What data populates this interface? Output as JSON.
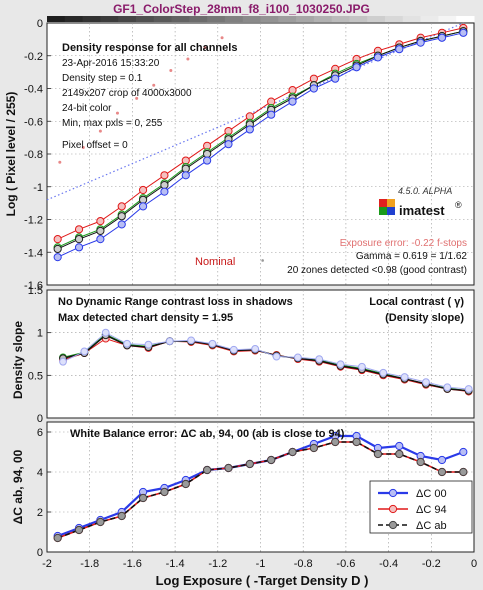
{
  "window_title": "GF1_ColorStep_28mm_f8_i100_1030250.JPG",
  "colors": {
    "red": "#e01818",
    "green": "#1a9a1a",
    "blue": "#2a3ae8",
    "black": "#111111",
    "ab": "#666666",
    "light_blue": "#a0a8f0",
    "nominal_red": "#c81818",
    "exposure_error": "#e07070",
    "nominal_dot": "#e88888"
  },
  "top_panel": {
    "title": "Density response for all channels",
    "info_lines": [
      "23-Apr-2016 15:33:20",
      "Density step = 0.1",
      "2149x207 crop of 4000x3000",
      "24-bit color",
      "Min, max pxls = 0, 255"
    ],
    "pixel_offset": "Pixel offset = 0",
    "version": "4.5.0. ALPHA",
    "logo": "imatest",
    "exposure_error": "Exposure error: -0.22 f-stops",
    "nominal_label": "Nominal",
    "gamma": "Gamma = 0.619 = 1/1.62",
    "zones": "20 zones detected <0.98 (good contrast)"
  },
  "middle_panel": {
    "left_line1": "No Dynamic Range contrast loss in shadows",
    "left_line2": "Max detected chart density = 1.95",
    "right_line1": "Local contrast ( γ)",
    "right_line2": "(Density slope)"
  },
  "bottom_panel": {
    "title": "White Balance error:  ΔC ab, 94, 00 (ab is close to 94)",
    "legend": [
      "ΔC 00",
      "ΔC 94",
      "ΔC ab"
    ]
  },
  "chart_data": [
    {
      "type": "line",
      "ylabel": "Log ( Pixel level / 255)",
      "xlim": [
        -2,
        0
      ],
      "ylim": [
        -1.6,
        0
      ],
      "yticks": [
        0,
        -0.2,
        -0.4,
        -0.6,
        -0.8,
        -1,
        -1.2,
        -1.4,
        -1.6
      ],
      "grid": true,
      "x": [
        -1.95,
        -1.85,
        -1.75,
        -1.65,
        -1.55,
        -1.45,
        -1.35,
        -1.25,
        -1.15,
        -1.05,
        -0.95,
        -0.85,
        -0.75,
        -0.65,
        -0.55,
        -0.45,
        -0.35,
        -0.25,
        -0.15,
        -0.05
      ],
      "series": [
        {
          "name": "red",
          "values": [
            -1.32,
            -1.26,
            -1.21,
            -1.12,
            -1.02,
            -0.93,
            -0.84,
            -0.75,
            -0.66,
            -0.57,
            -0.48,
            -0.41,
            -0.34,
            -0.28,
            -0.22,
            -0.17,
            -0.13,
            -0.09,
            -0.06,
            -0.03
          ]
        },
        {
          "name": "green",
          "values": [
            -1.37,
            -1.31,
            -1.26,
            -1.17,
            -1.07,
            -0.98,
            -0.88,
            -0.79,
            -0.7,
            -0.61,
            -0.52,
            -0.45,
            -0.38,
            -0.31,
            -0.25,
            -0.2,
            -0.15,
            -0.11,
            -0.08,
            -0.05
          ]
        },
        {
          "name": "black",
          "values": [
            -1.38,
            -1.32,
            -1.27,
            -1.18,
            -1.08,
            -0.99,
            -0.89,
            -0.8,
            -0.71,
            -0.62,
            -0.53,
            -0.46,
            -0.38,
            -0.32,
            -0.26,
            -0.2,
            -0.15,
            -0.11,
            -0.08,
            -0.05
          ]
        },
        {
          "name": "blue",
          "values": [
            -1.43,
            -1.37,
            -1.32,
            -1.23,
            -1.12,
            -1.03,
            -0.93,
            -0.84,
            -0.74,
            -0.65,
            -0.56,
            -0.48,
            -0.4,
            -0.34,
            -0.27,
            -0.21,
            -0.16,
            -0.12,
            -0.09,
            -0.06
          ]
        }
      ],
      "nominal_dotted_line": [
        [
          -2,
          -1.08
        ],
        [
          -0.05,
          0.0
        ]
      ],
      "nominal_points": [
        [
          -1.94,
          -0.85
        ],
        [
          -1.83,
          -0.76
        ],
        [
          -1.75,
          -0.66
        ],
        [
          -1.67,
          -0.55
        ],
        [
          -1.58,
          -0.46
        ],
        [
          -1.5,
          -0.38
        ],
        [
          -1.42,
          -0.29
        ],
        [
          -1.34,
          -0.22
        ],
        [
          -1.26,
          -0.15
        ],
        [
          -1.18,
          -0.09
        ]
      ],
      "nominal_marker": [
        -0.99,
        -1.45
      ]
    },
    {
      "type": "line",
      "ylabel": "Density slope",
      "xlim": [
        -2,
        0
      ],
      "ylim": [
        0,
        1.5
      ],
      "yticks": [
        0,
        0.5,
        1,
        1.5
      ],
      "grid": true,
      "x": [
        -1.925,
        -1.825,
        -1.725,
        -1.625,
        -1.525,
        -1.425,
        -1.325,
        -1.225,
        -1.125,
        -1.025,
        -0.925,
        -0.825,
        -0.725,
        -0.625,
        -0.525,
        -0.425,
        -0.325,
        -0.225,
        -0.125,
        -0.025
      ],
      "series": [
        {
          "name": "red",
          "values": [
            0.68,
            0.76,
            0.93,
            0.85,
            0.82,
            0.9,
            0.89,
            0.85,
            0.78,
            0.79,
            0.74,
            0.69,
            0.66,
            0.6,
            0.56,
            0.5,
            0.45,
            0.39,
            0.34,
            0.31
          ]
        },
        {
          "name": "green",
          "values": [
            0.71,
            0.77,
            0.98,
            0.86,
            0.84,
            0.9,
            0.9,
            0.86,
            0.79,
            0.8,
            0.73,
            0.7,
            0.68,
            0.62,
            0.58,
            0.52,
            0.46,
            0.4,
            0.35,
            0.32
          ]
        },
        {
          "name": "black",
          "values": [
            0.7,
            0.76,
            0.97,
            0.85,
            0.83,
            0.9,
            0.9,
            0.86,
            0.79,
            0.8,
            0.73,
            0.7,
            0.67,
            0.61,
            0.57,
            0.51,
            0.46,
            0.4,
            0.34,
            0.32
          ]
        },
        {
          "name": "blue",
          "values": [
            0.66,
            0.78,
            1.0,
            0.87,
            0.86,
            0.9,
            0.91,
            0.87,
            0.8,
            0.81,
            0.72,
            0.71,
            0.69,
            0.63,
            0.6,
            0.53,
            0.48,
            0.42,
            0.36,
            0.34
          ]
        }
      ]
    },
    {
      "type": "line",
      "ylabel": "ΔC ab, 94, 00",
      "xlabel": "Log Exposure ( -Target Density D )",
      "xlim": [
        -2,
        0
      ],
      "ylim": [
        0,
        6.5
      ],
      "xticks": [
        -2,
        -1.8,
        -1.6,
        -1.4,
        -1.2,
        -1,
        -0.8,
        -0.6,
        -0.4,
        -0.2,
        0
      ],
      "yticks": [
        0,
        2,
        4,
        6
      ],
      "grid": true,
      "legend_position": "bottom-right",
      "x": [
        -1.95,
        -1.85,
        -1.75,
        -1.65,
        -1.55,
        -1.45,
        -1.35,
        -1.25,
        -1.15,
        -1.05,
        -0.95,
        -0.85,
        -0.75,
        -0.65,
        -0.55,
        -0.45,
        -0.35,
        -0.25,
        -0.15,
        -0.05
      ],
      "series": [
        {
          "name": "ΔC 00",
          "values": [
            0.8,
            1.2,
            1.6,
            2.0,
            3.0,
            3.2,
            3.6,
            4.1,
            4.2,
            4.4,
            4.6,
            5.0,
            5.4,
            5.8,
            5.8,
            5.2,
            5.3,
            4.8,
            4.6,
            5.0
          ]
        },
        {
          "name": "ΔC 94",
          "values": [
            0.7,
            1.1,
            1.5,
            1.8,
            2.7,
            3.0,
            3.4,
            4.1,
            4.2,
            4.4,
            4.6,
            5.0,
            5.2,
            5.5,
            5.5,
            4.9,
            4.9,
            4.5,
            4.0,
            4.0
          ]
        },
        {
          "name": "ΔC ab",
          "values": [
            0.7,
            1.1,
            1.5,
            1.8,
            2.7,
            3.0,
            3.4,
            4.1,
            4.2,
            4.4,
            4.6,
            5.0,
            5.2,
            5.5,
            5.5,
            4.9,
            4.9,
            4.5,
            4.0,
            4.0
          ]
        }
      ]
    }
  ]
}
